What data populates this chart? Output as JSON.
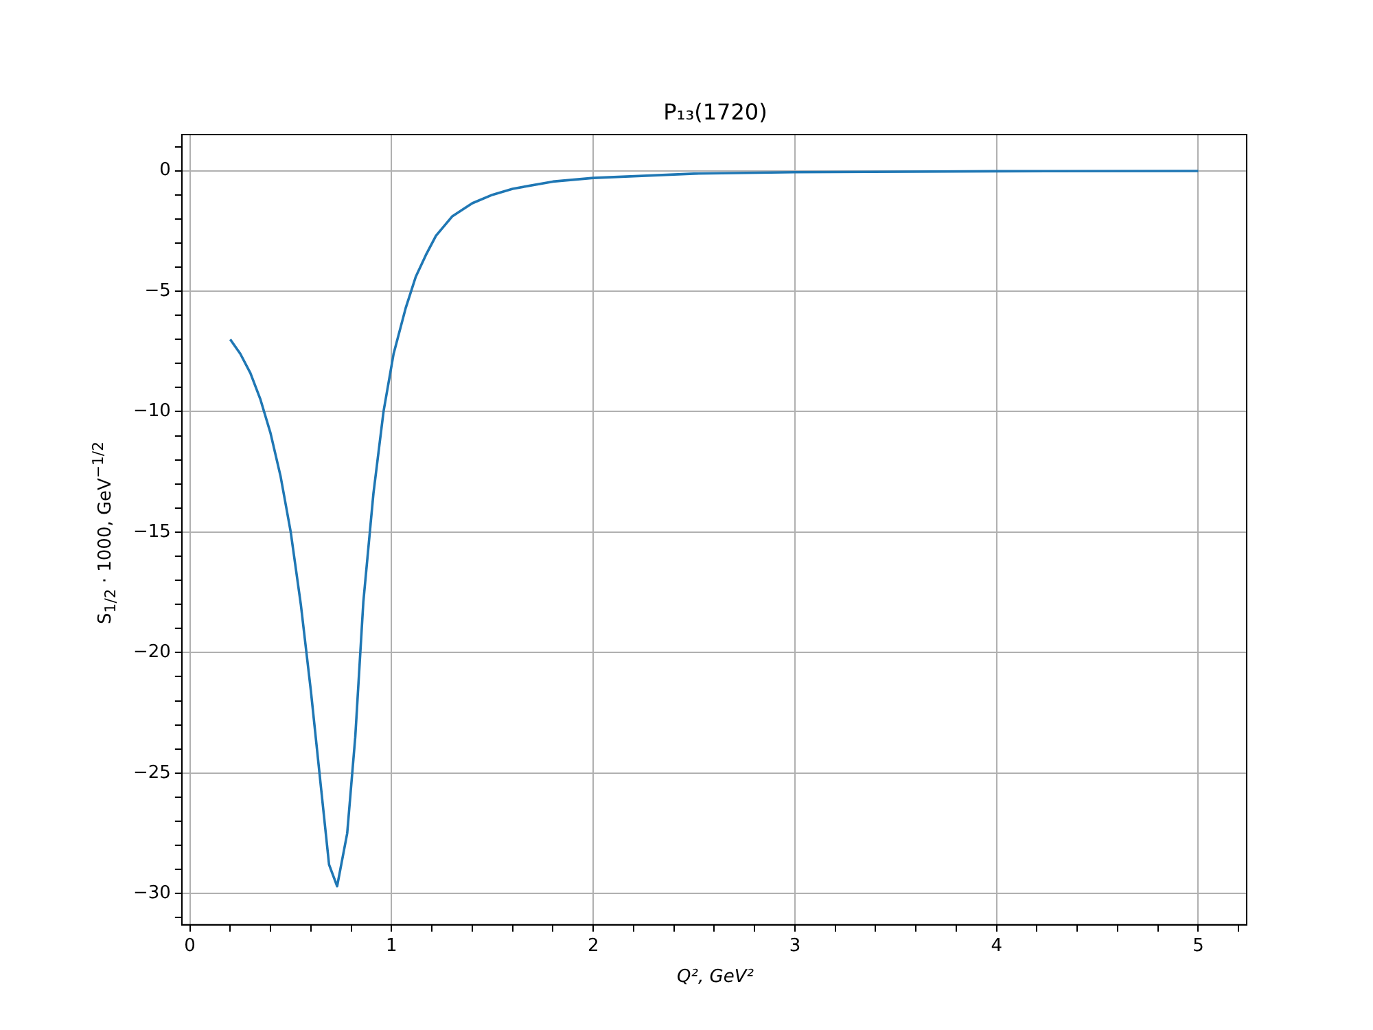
{
  "chart_data": {
    "type": "line",
    "title": "P₁₃(1720)",
    "xlabel": "Q², GeV²",
    "ylabel": "S$_{1/2}$ · 1000, GeV$^{−1/2}$",
    "series": [
      {
        "color": "#1f77b4",
        "x": [
          0.2,
          0.25,
          0.3,
          0.35,
          0.4,
          0.45,
          0.5,
          0.55,
          0.6,
          0.65,
          0.69,
          0.73,
          0.78,
          0.82,
          0.86,
          0.91,
          0.96,
          1.01,
          1.07,
          1.12,
          1.17,
          1.22,
          1.3,
          1.4,
          1.5,
          1.6,
          1.8,
          2.0,
          2.5,
          3.0,
          4.0,
          5.0
        ],
        "values": [
          -7.0,
          -7.6,
          -8.4,
          -9.5,
          -10.9,
          -12.7,
          -15.0,
          -18.0,
          -21.6,
          -25.6,
          -28.8,
          -29.7,
          -27.5,
          -23.5,
          -17.9,
          -13.4,
          -10.0,
          -7.6,
          -5.7,
          -4.4,
          -3.5,
          -2.7,
          -1.9,
          -1.35,
          -1.0,
          -0.75,
          -0.45,
          -0.3,
          -0.12,
          -0.06,
          -0.02,
          -0.01
        ]
      }
    ],
    "xlim": [
      -0.04,
      5.24
    ],
    "ylim": [
      -31.3,
      1.5
    ],
    "xticks": [
      0,
      {
        "value": 0.2,
        "label": null
      },
      {
        "value": 0.4,
        "label": null
      },
      {
        "value": 0.6,
        "label": null
      },
      {
        "value": 0.8,
        "label": null
      },
      1,
      {
        "value": 1.2,
        "label": null
      },
      {
        "value": 1.4,
        "label": null
      },
      {
        "value": 1.6,
        "label": null
      },
      {
        "value": 1.8,
        "label": null
      },
      2,
      {
        "value": 2.2,
        "label": null
      },
      {
        "value": 2.4,
        "label": null
      },
      {
        "value": 2.6,
        "label": null
      },
      {
        "value": 2.8,
        "label": null
      },
      3,
      {
        "value": 3.2,
        "label": null
      },
      {
        "value": 3.4,
        "label": null
      },
      {
        "value": 3.6,
        "label": null
      },
      {
        "value": 3.8,
        "label": null
      },
      4,
      {
        "value": 4.2,
        "label": null
      },
      {
        "value": 4.4,
        "label": null
      },
      {
        "value": 4.6,
        "label": null
      },
      {
        "value": 4.8,
        "label": null
      },
      5,
      {
        "value": 5.2,
        "label": null
      }
    ],
    "yticks": [
      {
        "value": -31,
        "label": null
      },
      -30,
      {
        "value": -29,
        "label": null
      },
      {
        "value": -28,
        "label": null
      },
      {
        "value": -27,
        "label": null
      },
      {
        "value": -26,
        "label": null
      },
      -25,
      {
        "value": -24,
        "label": null
      },
      {
        "value": -23,
        "label": null
      },
      {
        "value": -22,
        "label": null
      },
      {
        "value": -21,
        "label": null
      },
      -20,
      {
        "value": -19,
        "label": null
      },
      {
        "value": -18,
        "label": null
      },
      {
        "value": -17,
        "label": null
      },
      {
        "value": -16,
        "label": null
      },
      -15,
      {
        "value": -14,
        "label": null
      },
      {
        "value": -13,
        "label": null
      },
      {
        "value": -12,
        "label": null
      },
      {
        "value": -11,
        "label": null
      },
      -10,
      {
        "value": -9,
        "label": null
      },
      {
        "value": -8,
        "label": null
      },
      {
        "value": -7,
        "label": null
      },
      {
        "value": -6,
        "label": null
      },
      -5,
      {
        "value": -4,
        "label": null
      },
      {
        "value": -3,
        "label": null
      },
      {
        "value": -2,
        "label": null
      },
      {
        "value": -1,
        "label": null
      },
      0,
      {
        "value": 1,
        "label": null
      }
    ],
    "grid": true,
    "legend": false,
    "marker": "none",
    "line_style": "solid"
  }
}
